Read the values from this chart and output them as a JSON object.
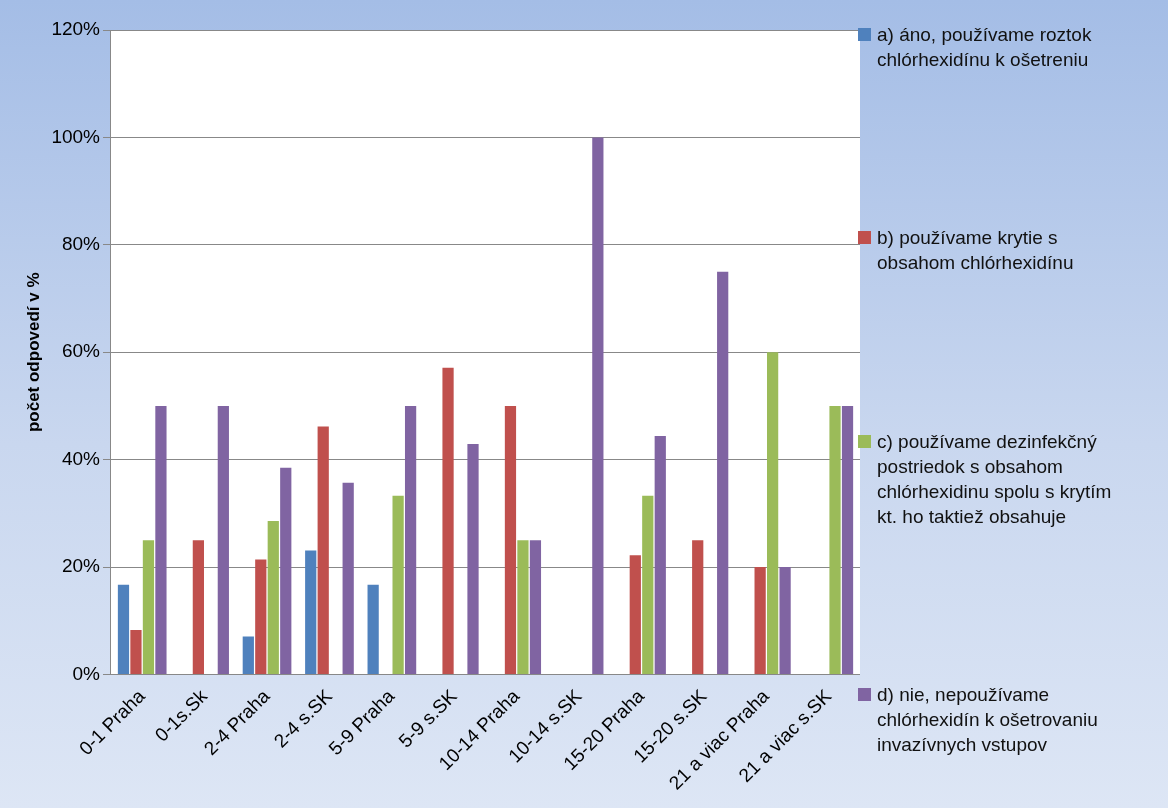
{
  "chart_data": {
    "type": "bar",
    "ylabel": "počet odpovedí v %",
    "categories": [
      "0-1 Praha",
      "0-1s.Sk",
      "2-4 Praha",
      "2-4 s.SK",
      "5-9 Praha",
      "5-9 s.SK",
      "10-14 Praha",
      "10-14 s.SK",
      "15-20 Praha",
      "15-20 s.SK",
      "21 a viac Praha",
      "21 a viac s.SK"
    ],
    "series": [
      {
        "name": "a) áno, používame roztok chlórhexidínu k ošetreniu",
        "color": "#4f81bd",
        "values": [
          16.7,
          0,
          7.1,
          23.1,
          16.7,
          0,
          0,
          0,
          0,
          0,
          0,
          0
        ]
      },
      {
        "name": "b) používame krytie s obsahom chlórhexidínu",
        "color": "#c0504d",
        "values": [
          8.3,
          25,
          21.4,
          46.2,
          0,
          57.1,
          50,
          0,
          22.2,
          25,
          20,
          0
        ]
      },
      {
        "name": "c) používame dezinfekčný postriedok s obsahom chlórhexidinu spolu s krytím kt. ho taktiež obsahuje",
        "color": "#9bbb59",
        "values": [
          25,
          0,
          28.6,
          0,
          33.3,
          0,
          25,
          0,
          33.3,
          0,
          60,
          50
        ]
      },
      {
        "name": "d) nie, nepoužívame chlórhexidín k ošetrovaniu invazívnych vstupov",
        "color": "#8064a2",
        "values": [
          50,
          50,
          38.5,
          35.7,
          50,
          42.9,
          25,
          100,
          44.4,
          75,
          20,
          50
        ]
      }
    ],
    "ylim": [
      0,
      120
    ],
    "yticks": [
      {
        "value": 0,
        "label": "0%"
      },
      {
        "value": 20,
        "label": "20%"
      },
      {
        "value": 40,
        "label": "40%"
      },
      {
        "value": 60,
        "label": "60%"
      },
      {
        "value": 80,
        "label": "80%"
      },
      {
        "value": 100,
        "label": "100%"
      },
      {
        "value": 120,
        "label": "120%"
      }
    ],
    "grid": "y",
    "legend": "right"
  }
}
